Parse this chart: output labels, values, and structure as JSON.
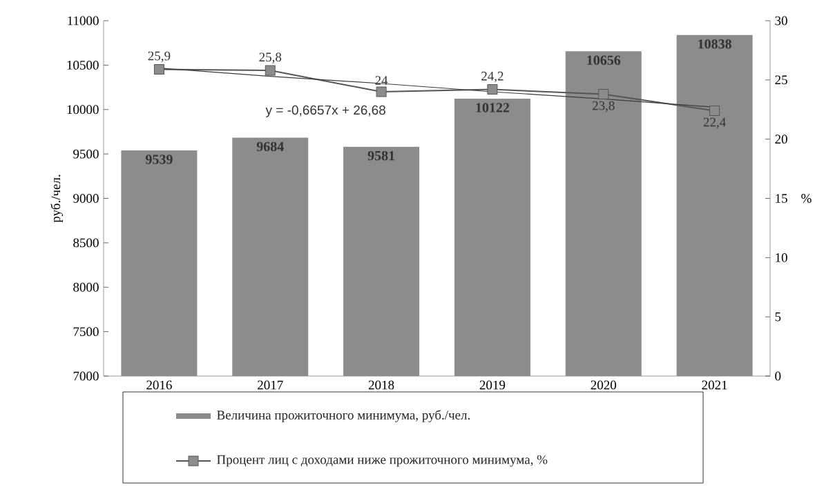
{
  "chart_data": {
    "type": "bar",
    "categories": [
      "2016",
      "2017",
      "2018",
      "2019",
      "2020",
      "2021"
    ],
    "series": [
      {
        "name": "Величина прожиточного минимума, руб./чел.",
        "color": "#8c8c8c",
        "values": [
          9539,
          9684,
          9581,
          10122,
          10656,
          10838
        ],
        "value_labels": [
          "9539",
          "9684",
          "9581",
          "10122",
          "10656",
          "10838"
        ]
      },
      {
        "name": "Процент лиц с доходами ниже прожиточного минимума, %",
        "type": "line",
        "axis": "y2",
        "color": "#555555",
        "marker": "square",
        "values": [
          25.9,
          25.8,
          24,
          24.2,
          23.8,
          22.4
        ],
        "value_labels": [
          "25,9",
          "25,8",
          "24",
          "24,2",
          "23,8",
          "22,4"
        ]
      },
      {
        "type": "line",
        "axis": "y2",
        "color": "#3a3a3a",
        "marker": "none",
        "values": [
          26.0,
          25.3,
          24.7,
          24.0,
          23.4,
          22.7
        ]
      }
    ],
    "ylim": [
      7000,
      11000
    ],
    "yticks": [
      7000,
      7500,
      8000,
      8500,
      9000,
      9500,
      10000,
      10500,
      11000
    ],
    "y2lim": [
      0,
      30
    ],
    "y2ticks": [
      0,
      5,
      10,
      15,
      20,
      25,
      30
    ],
    "ylabel": "руб./чел.",
    "y2label": "%",
    "annotations": [
      "y = -0,6657x + 26,68"
    ],
    "legend": "bottom"
  }
}
